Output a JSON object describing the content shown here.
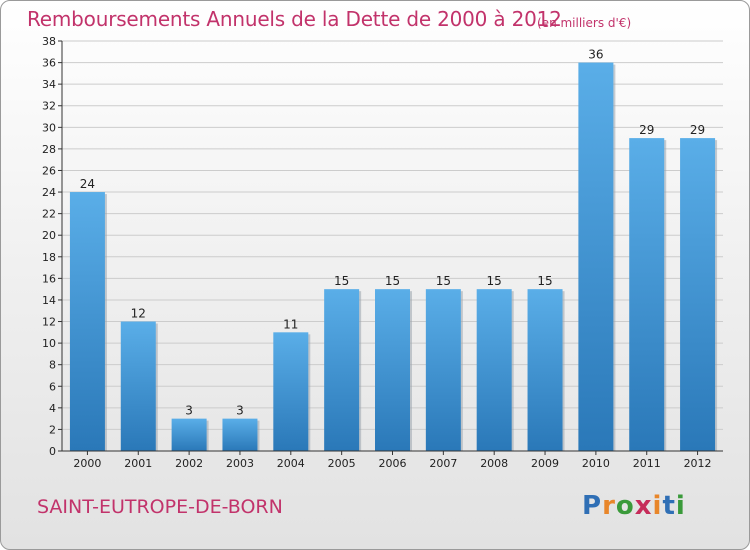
{
  "chart_data": {
    "type": "bar",
    "title": "Remboursements Annuels de la Dette de 2000 à 2012",
    "subtitle": "(en milliers d'€)",
    "categories": [
      "2000",
      "2001",
      "2002",
      "2003",
      "2004",
      "2005",
      "2006",
      "2007",
      "2008",
      "2009",
      "2010",
      "2011",
      "2012"
    ],
    "values": [
      24,
      12,
      3,
      3,
      11,
      15,
      15,
      15,
      15,
      15,
      36,
      29,
      29
    ],
    "ylim": [
      0,
      38
    ],
    "yticks": [
      0,
      2,
      4,
      6,
      8,
      10,
      12,
      14,
      16,
      18,
      20,
      22,
      24,
      26,
      28,
      30,
      32,
      34,
      36,
      38
    ],
    "xlabel": "",
    "ylabel": "",
    "grid": true
  },
  "commune": "SAINT-EUTROPE-DE-BORN",
  "logo": {
    "letters": [
      "P",
      "r",
      "o",
      "x",
      "i",
      "t",
      "i"
    ],
    "colors": [
      "#2f6fb5",
      "#e8862a",
      "#3a9a3a",
      "#c62c5a",
      "#e8862a",
      "#2f6fb5",
      "#3a9a3a"
    ]
  },
  "colors": {
    "title": "#c2336b",
    "bar_light": "#5aaee8",
    "bar_dark": "#2a78b8",
    "axis": "#333333",
    "grid": "#cccccc"
  }
}
